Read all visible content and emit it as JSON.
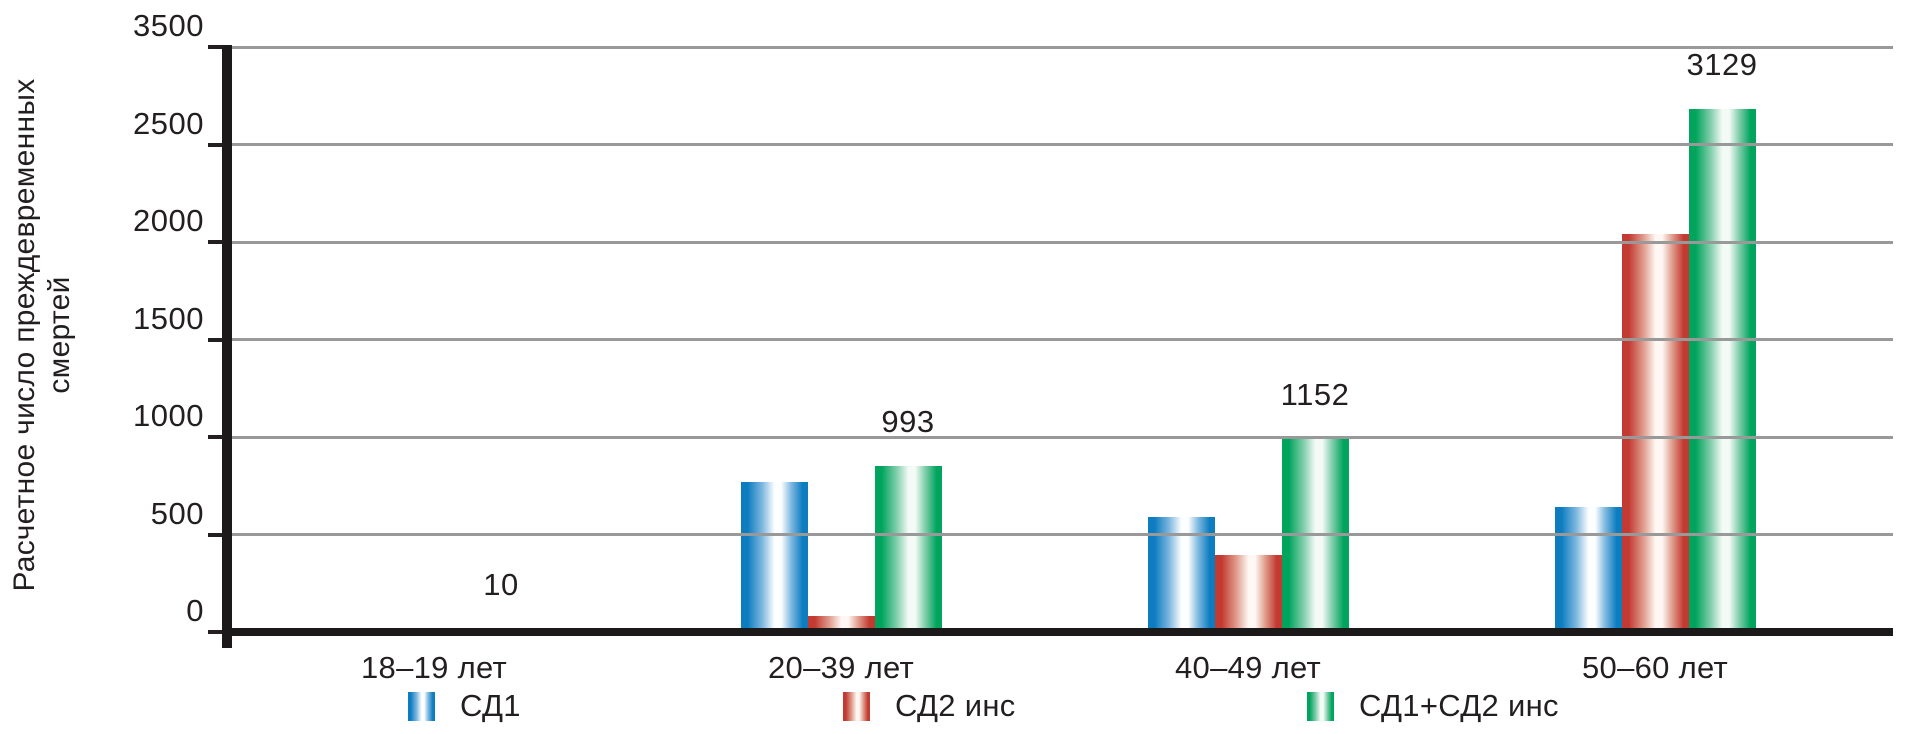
{
  "chart_data": {
    "type": "bar",
    "title": "",
    "ylabel": "Расчетное число преждевременных смертей",
    "ylabel_lines": [
      "Расчетное число преждевременных",
      "смертей"
    ],
    "categories": [
      "18–19 лет",
      "20–39 лет",
      "40–49 лет",
      "50–60 лет"
    ],
    "series": [
      {
        "name": "СД1",
        "color": "#0d7dc0",
        "mid": "#7fb8e0",
        "highlight": "#fdfeff",
        "values": [
          10,
          900,
          690,
          750
        ]
      },
      {
        "name": "СД2 инс",
        "color": "#c23a31",
        "mid": "#e09c8d",
        "highlight": "#fef7f3",
        "values": [
          0,
          93,
          462,
          2379
        ]
      },
      {
        "name": "СД1+СД2 инс",
        "color": "#00a45d",
        "mid": "#7fcdaa",
        "highlight": "#f4fbf7",
        "values": [
          10,
          993,
          1152,
          3129
        ]
      }
    ],
    "bar_labels": {
      "series_index": 2,
      "values": [
        "10",
        "993",
        "1152",
        "3129"
      ]
    },
    "y_axis": {
      "ticks_bottom_to_top": [
        "0",
        "500",
        "1000",
        "1500",
        "2000",
        "2500",
        "3500"
      ],
      "max": 3500
    },
    "grid": true,
    "legend": {
      "position": "bottom",
      "items": [
        "СД1",
        "СД2 инс",
        "СД1+СД2 инс"
      ]
    },
    "colors": {
      "gridline": "#999999",
      "axis": "#1c191a",
      "text": "#231f20",
      "background": "#ffffff"
    }
  }
}
